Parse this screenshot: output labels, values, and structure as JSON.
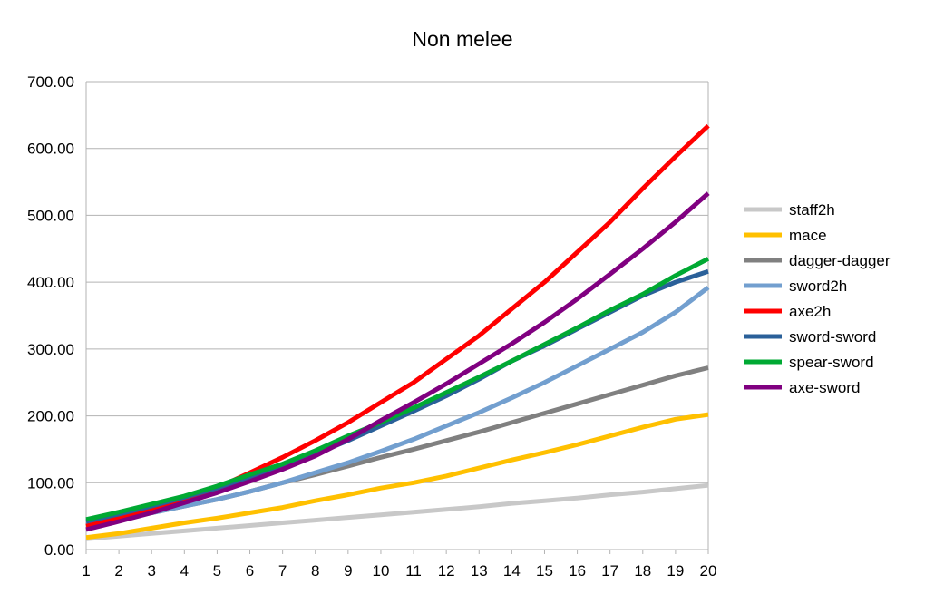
{
  "chart_data": {
    "type": "line",
    "title": "Non melee",
    "xlabel": "",
    "ylabel": "",
    "x": [
      1,
      2,
      3,
      4,
      5,
      6,
      7,
      8,
      9,
      10,
      11,
      12,
      13,
      14,
      15,
      16,
      17,
      18,
      19,
      20
    ],
    "ylim": [
      0,
      700
    ],
    "yticks": [
      "0.00",
      "100.00",
      "200.00",
      "300.00",
      "400.00",
      "500.00",
      "600.00",
      "700.00"
    ],
    "grid": "horizontal",
    "legend_position": "right",
    "series": [
      {
        "name": "staff2h",
        "color": "#c8c8c8",
        "values": [
          16,
          20,
          24,
          28,
          32,
          36,
          40,
          44,
          48,
          52,
          56,
          60,
          64,
          69,
          73,
          77,
          82,
          86,
          91,
          96
        ]
      },
      {
        "name": "mace",
        "color": "#ffc000",
        "values": [
          18,
          24,
          32,
          40,
          47,
          55,
          63,
          73,
          82,
          92,
          100,
          110,
          122,
          134,
          145,
          157,
          170,
          183,
          195,
          202
        ]
      },
      {
        "name": "dagger-dagger",
        "color": "#808080",
        "values": [
          38,
          46,
          55,
          65,
          75,
          87,
          100,
          112,
          125,
          138,
          150,
          163,
          176,
          190,
          204,
          218,
          232,
          246,
          260,
          272
        ]
      },
      {
        "name": "sword2h",
        "color": "#729fcf",
        "values": [
          37,
          45,
          55,
          65,
          75,
          87,
          100,
          115,
          130,
          147,
          165,
          185,
          205,
          227,
          250,
          275,
          300,
          325,
          355,
          392
        ]
      },
      {
        "name": "axe2h",
        "color": "#ff0000",
        "values": [
          35,
          47,
          60,
          75,
          92,
          115,
          138,
          163,
          190,
          220,
          250,
          285,
          320,
          360,
          400,
          445,
          490,
          540,
          588,
          634
        ]
      },
      {
        "name": "sword-sword",
        "color": "#2a6099",
        "values": [
          42,
          53,
          65,
          78,
          92,
          108,
          125,
          143,
          163,
          185,
          207,
          230,
          255,
          282,
          305,
          330,
          355,
          380,
          400,
          416
        ]
      },
      {
        "name": "spear-sword",
        "color": "#00a933",
        "values": [
          45,
          56,
          68,
          80,
          95,
          112,
          128,
          148,
          170,
          190,
          212,
          235,
          258,
          282,
          307,
          332,
          358,
          382,
          410,
          435
        ]
      },
      {
        "name": "axe-sword",
        "color": "#800080",
        "values": [
          30,
          42,
          55,
          70,
          85,
          102,
          120,
          140,
          165,
          193,
          220,
          248,
          278,
          308,
          340,
          375,
          412,
          450,
          490,
          533
        ]
      }
    ]
  }
}
